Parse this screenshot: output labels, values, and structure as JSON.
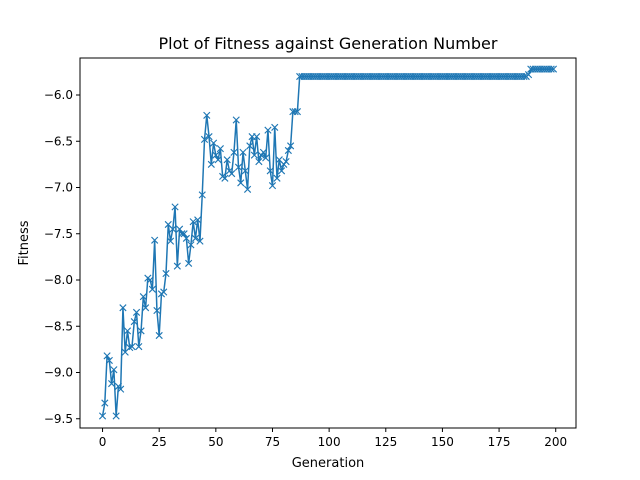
{
  "chart_data": {
    "type": "line",
    "title": "Plot of Fitness against Generation Number",
    "xlabel": "Generation",
    "ylabel": "Fitness",
    "xlim": [
      -9.95,
      208.95
    ],
    "ylim": [
      -9.6,
      -5.6
    ],
    "grid": false,
    "legend": "none",
    "marker": "x",
    "color": "#1f77b4",
    "x_ticks": [
      {
        "value": 0,
        "label": "0"
      },
      {
        "value": 25,
        "label": "25"
      },
      {
        "value": 50,
        "label": "50"
      },
      {
        "value": 75,
        "label": "75"
      },
      {
        "value": 100,
        "label": "100"
      },
      {
        "value": 125,
        "label": "125"
      },
      {
        "value": 150,
        "label": "150"
      },
      {
        "value": 175,
        "label": "175"
      },
      {
        "value": 200,
        "label": "200"
      }
    ],
    "y_ticks": [
      {
        "value": -6.0,
        "label": "−6.0"
      },
      {
        "value": -6.5,
        "label": "−6.5"
      },
      {
        "value": -7.0,
        "label": "−7.0"
      },
      {
        "value": -7.5,
        "label": "−7.5"
      },
      {
        "value": -8.0,
        "label": "−8.0"
      },
      {
        "value": -8.5,
        "label": "−8.5"
      },
      {
        "value": -9.0,
        "label": "−9.0"
      },
      {
        "value": -9.5,
        "label": "−9.5"
      }
    ],
    "series": [
      {
        "values": [
          -9.47,
          -9.33,
          -8.82,
          -8.87,
          -9.12,
          -8.97,
          -9.47,
          -9.15,
          -9.18,
          -8.3,
          -8.78,
          -8.55,
          -8.73,
          -8.72,
          -8.45,
          -8.35,
          -8.72,
          -8.55,
          -8.18,
          -8.3,
          -7.98,
          -8.0,
          -8.1,
          -7.57,
          -8.33,
          -8.6,
          -8.15,
          -8.13,
          -7.93,
          -7.4,
          -7.58,
          -7.45,
          -7.21,
          -7.85,
          -7.45,
          -7.5,
          -7.5,
          -7.55,
          -7.82,
          -7.62,
          -7.37,
          -7.55,
          -7.35,
          -7.58,
          -7.08,
          -6.48,
          -6.22,
          -6.45,
          -6.75,
          -6.52,
          -6.65,
          -6.7,
          -6.58,
          -6.88,
          -6.9,
          -6.7,
          -6.82,
          -6.85,
          -6.62,
          -6.27,
          -6.78,
          -6.95,
          -6.62,
          -6.82,
          -7.02,
          -6.55,
          -6.45,
          -6.65,
          -6.45,
          -6.72,
          -6.65,
          -6.62,
          -6.68,
          -6.38,
          -6.82,
          -6.98,
          -6.35,
          -6.9,
          -6.7,
          -6.82,
          -6.75,
          -6.72,
          -6.6,
          -6.55,
          -6.18,
          -6.18,
          -6.18,
          -5.8,
          -5.8,
          -5.8,
          -5.8,
          -5.8,
          -5.8,
          -5.8,
          -5.8,
          -5.8,
          -5.8,
          -5.8,
          -5.8,
          -5.8,
          -5.8,
          -5.8,
          -5.8,
          -5.8,
          -5.8,
          -5.8,
          -5.8,
          -5.8,
          -5.8,
          -5.8,
          -5.8,
          -5.8,
          -5.8,
          -5.8,
          -5.8,
          -5.8,
          -5.8,
          -5.8,
          -5.8,
          -5.8,
          -5.8,
          -5.8,
          -5.8,
          -5.8,
          -5.8,
          -5.8,
          -5.8,
          -5.8,
          -5.8,
          -5.8,
          -5.8,
          -5.8,
          -5.8,
          -5.8,
          -5.8,
          -5.8,
          -5.8,
          -5.8,
          -5.8,
          -5.8,
          -5.8,
          -5.8,
          -5.8,
          -5.8,
          -5.8,
          -5.8,
          -5.8,
          -5.8,
          -5.8,
          -5.8,
          -5.8,
          -5.8,
          -5.8,
          -5.8,
          -5.8,
          -5.8,
          -5.8,
          -5.8,
          -5.8,
          -5.8,
          -5.8,
          -5.8,
          -5.8,
          -5.8,
          -5.8,
          -5.8,
          -5.8,
          -5.8,
          -5.8,
          -5.8,
          -5.8,
          -5.8,
          -5.8,
          -5.8,
          -5.8,
          -5.8,
          -5.8,
          -5.8,
          -5.8,
          -5.8,
          -5.8,
          -5.8,
          -5.8,
          -5.8,
          -5.8,
          -5.8,
          -5.8,
          -5.8,
          -5.78,
          -5.72,
          -5.72,
          -5.72,
          -5.72,
          -5.72,
          -5.72,
          -5.72,
          -5.72,
          -5.72,
          -5.72,
          -5.72
        ]
      }
    ]
  }
}
